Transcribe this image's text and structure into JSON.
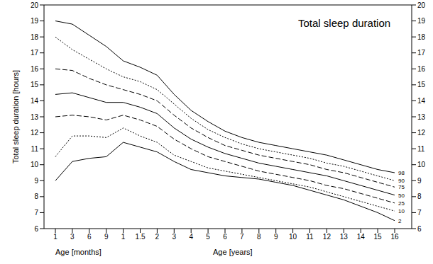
{
  "chart_data": {
    "type": "line",
    "title": "Total sleep duration",
    "xlabel": [
      "Age [months]",
      "Age [years]"
    ],
    "ylabel": "Total sleep duration [hours]",
    "categories": [
      "1",
      "3",
      "6",
      "9",
      "1",
      "1.5",
      "2",
      "3",
      "4",
      "5",
      "6",
      "7",
      "8",
      "9",
      "10",
      "11",
      "12",
      "13",
      "14",
      "15",
      "16"
    ],
    "ylim": [
      6,
      20
    ],
    "yticks": [
      6,
      7,
      8,
      9,
      10,
      11,
      12,
      13,
      14,
      15,
      16,
      17,
      18,
      19,
      20
    ],
    "y2lim": [
      6,
      20
    ],
    "y2ticks": [
      6,
      7,
      8,
      9,
      10,
      11,
      12,
      13,
      14,
      15,
      16,
      17,
      18,
      19,
      20
    ],
    "grid": false,
    "series": [
      {
        "name": "98",
        "color": "#000000",
        "line_style": "solid",
        "values": [
          19.0,
          18.8,
          18.1,
          17.4,
          16.5,
          16.1,
          15.6,
          14.4,
          13.4,
          12.7,
          12.1,
          11.7,
          11.4,
          11.2,
          11.0,
          10.8,
          10.6,
          10.3,
          10.0,
          9.7,
          9.5
        ]
      },
      {
        "name": "90",
        "color": "#000000",
        "line_style": "dotted",
        "values": [
          18.0,
          17.2,
          16.6,
          16.0,
          15.5,
          15.2,
          14.7,
          13.8,
          12.9,
          12.2,
          11.7,
          11.3,
          11.0,
          10.8,
          10.6,
          10.4,
          10.1,
          9.9,
          9.6,
          9.3,
          9.0
        ]
      },
      {
        "name": "75",
        "color": "#000000",
        "line_style": "dashed",
        "values": [
          16.0,
          15.9,
          15.4,
          15.0,
          14.7,
          14.4,
          14.0,
          13.1,
          12.3,
          11.7,
          11.2,
          10.9,
          10.6,
          10.4,
          10.2,
          10.0,
          9.7,
          9.5,
          9.2,
          8.9,
          8.6
        ]
      },
      {
        "name": "50",
        "color": "#000000",
        "line_style": "solid",
        "values": [
          14.4,
          14.5,
          14.2,
          13.9,
          13.9,
          13.6,
          13.2,
          12.3,
          11.6,
          11.1,
          10.7,
          10.4,
          10.1,
          9.9,
          9.7,
          9.5,
          9.3,
          9.0,
          8.7,
          8.4,
          8.1
        ]
      },
      {
        "name": "25",
        "color": "#000000",
        "line_style": "dashed",
        "values": [
          13.0,
          13.1,
          13.0,
          12.8,
          13.1,
          12.8,
          12.4,
          11.6,
          11.0,
          10.5,
          10.2,
          9.9,
          9.6,
          9.4,
          9.2,
          9.0,
          8.7,
          8.5,
          8.2,
          7.9,
          7.6
        ]
      },
      {
        "name": "10",
        "color": "#000000",
        "line_style": "dotted",
        "values": [
          10.5,
          11.8,
          11.8,
          11.7,
          12.3,
          11.8,
          11.4,
          10.6,
          10.2,
          9.8,
          9.6,
          9.4,
          9.2,
          9.0,
          8.8,
          8.6,
          8.3,
          8.0,
          7.7,
          7.4,
          7.1
        ]
      },
      {
        "name": "2",
        "color": "#000000",
        "line_style": "solid",
        "values": [
          9.0,
          10.2,
          10.4,
          10.5,
          11.4,
          11.1,
          10.8,
          10.2,
          9.7,
          9.5,
          9.3,
          9.2,
          9.1,
          8.9,
          8.7,
          8.4,
          8.1,
          7.8,
          7.4,
          7.0,
          6.5
        ]
      }
    ]
  }
}
